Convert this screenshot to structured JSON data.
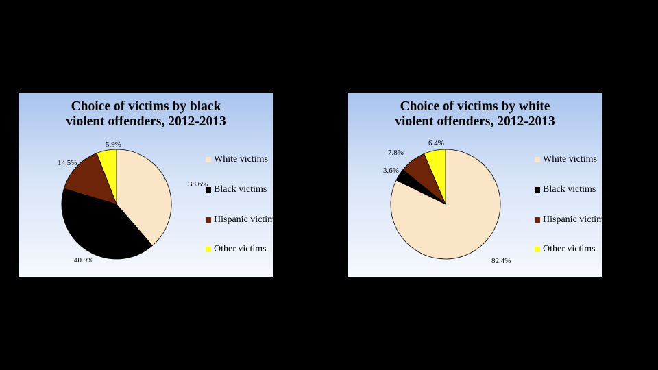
{
  "chart_data": [
    {
      "type": "pie",
      "title": "Choice of victims by black\nviolent offenders, 2012-2013",
      "categories": [
        "White victims",
        "Black victims",
        "Hispanic victims",
        "Other victims"
      ],
      "values": [
        38.6,
        40.9,
        14.5,
        5.9
      ],
      "value_labels": [
        "38.6%",
        "40.9%",
        "14.5%",
        "5.9%"
      ],
      "colors": [
        "#fae5c6",
        "#000000",
        "#6e2408",
        "#ffff1a"
      ],
      "legend_position": "right"
    },
    {
      "type": "pie",
      "title": "Choice of victims by white\nviolent offenders, 2012-2013",
      "categories": [
        "White victims",
        "Black victims",
        "Hispanic victims",
        "Other victims"
      ],
      "values": [
        82.4,
        3.6,
        7.8,
        6.4
      ],
      "value_labels": [
        "82.4%",
        "3.6%",
        "7.8%",
        "6.4%"
      ],
      "colors": [
        "#fae5c6",
        "#000000",
        "#6e2408",
        "#ffff1a"
      ],
      "legend_position": "right"
    }
  ]
}
